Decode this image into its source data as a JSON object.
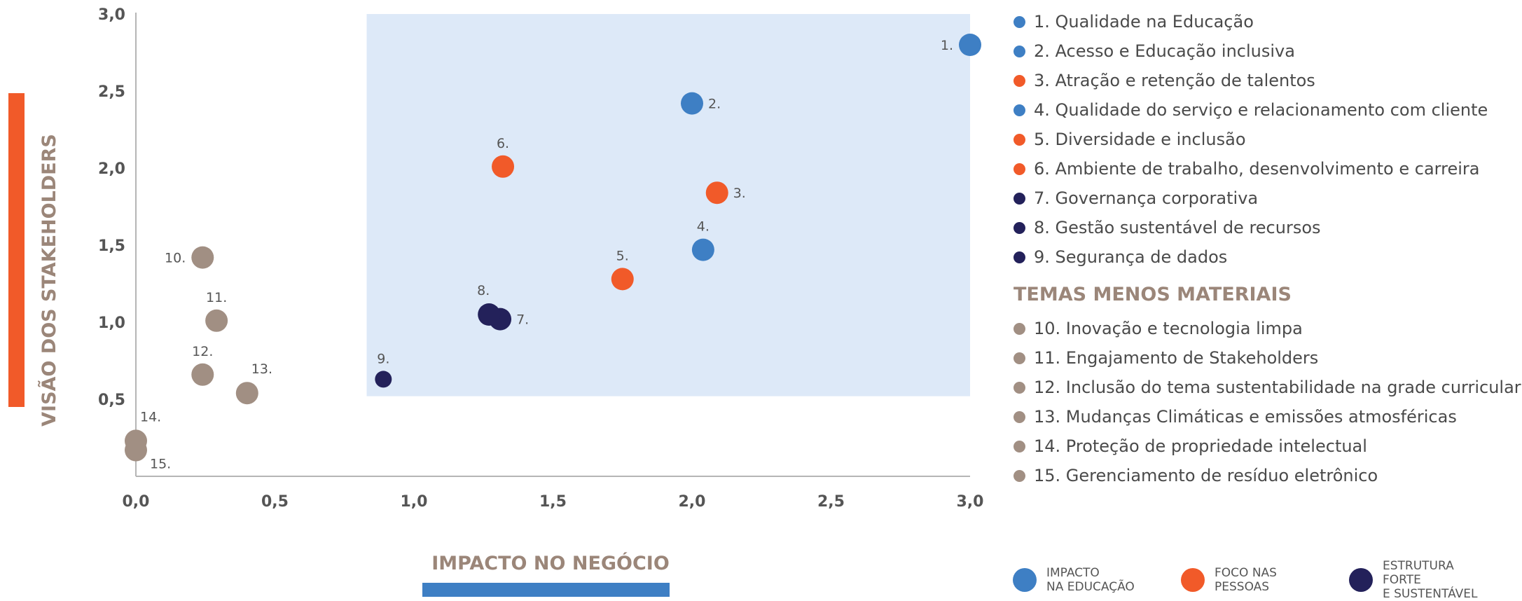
{
  "colors": {
    "education": "#3e7fc4",
    "people": "#f15a29",
    "structure": "#23215a",
    "less": "#a18f83",
    "highlight": "#dde9f8",
    "axis": "#b5b5b5",
    "title": "#9b8679",
    "accent_orange": "#f15a29",
    "accent_blue": "#3e7fc4"
  },
  "chart_data": {
    "type": "scatter",
    "title": "",
    "xlabel": "IMPACTO NO NEGÓCIO",
    "ylabel": "VISÃO DOS STAKEHOLDERS",
    "xlim": [
      0,
      3
    ],
    "ylim": [
      0,
      3
    ],
    "x_ticks": [
      "0,0",
      "0,5",
      "1,0",
      "1,5",
      "2,0",
      "2,5",
      "3,0"
    ],
    "y_ticks": [
      "0,5",
      "1,0",
      "1,5",
      "2,0",
      "2,5",
      "3,0"
    ],
    "highlight_region": {
      "x": [
        0.83,
        3.0
      ],
      "y": [
        0.52,
        3.0
      ]
    },
    "points": [
      {
        "label": "1.",
        "x": 3.0,
        "y": 2.8,
        "group": "education",
        "label_pos": "left"
      },
      {
        "label": "2.",
        "x": 2.0,
        "y": 2.42,
        "group": "education",
        "label_pos": "right"
      },
      {
        "label": "3.",
        "x": 2.09,
        "y": 1.84,
        "group": "people",
        "label_pos": "right"
      },
      {
        "label": "4.",
        "x": 2.04,
        "y": 1.47,
        "group": "education",
        "label_pos": "above"
      },
      {
        "label": "5.",
        "x": 1.75,
        "y": 1.28,
        "group": "people",
        "label_pos": "above"
      },
      {
        "label": "6.",
        "x": 1.32,
        "y": 2.01,
        "group": "people",
        "label_pos": "above"
      },
      {
        "label": "7.",
        "x": 1.31,
        "y": 1.02,
        "group": "structure",
        "label_pos": "right"
      },
      {
        "label": "8.",
        "x": 1.27,
        "y": 1.05,
        "group": "structure",
        "label_pos": "above-left"
      },
      {
        "label": "9.",
        "x": 0.89,
        "y": 0.63,
        "group": "structure",
        "label_pos": "above"
      },
      {
        "label": "10.",
        "x": 0.24,
        "y": 1.42,
        "group": "less",
        "label_pos": "left"
      },
      {
        "label": "11.",
        "x": 0.29,
        "y": 1.01,
        "group": "less",
        "label_pos": "above"
      },
      {
        "label": "12.",
        "x": 0.24,
        "y": 0.66,
        "group": "less",
        "label_pos": "above"
      },
      {
        "label": "13.",
        "x": 0.4,
        "y": 0.54,
        "group": "less",
        "label_pos": "above-right"
      },
      {
        "label": "14.",
        "x": 0.0,
        "y": 0.23,
        "group": "less",
        "label_pos": "above-right"
      },
      {
        "label": "15.",
        "x": 0.0,
        "y": 0.17,
        "group": "less",
        "label_pos": "below-right"
      }
    ]
  },
  "legend": {
    "material": [
      {
        "text": "1. Qualidade na Educação",
        "group": "education"
      },
      {
        "text": "2. Acesso e Educação inclusiva",
        "group": "education"
      },
      {
        "text": "3. Atração e retenção de talentos",
        "group": "people"
      },
      {
        "text": "4. Qualidade do serviço e relacionamento com cliente",
        "group": "education"
      },
      {
        "text": "5. Diversidade e inclusão",
        "group": "people"
      },
      {
        "text": "6. Ambiente de trabalho, desenvolvimento e carreira",
        "group": "people"
      },
      {
        "text": "7. Governança corporativa",
        "group": "structure"
      },
      {
        "text": "8. Gestão sustentável de recursos",
        "group": "structure"
      },
      {
        "text": "9. Segurança de dados",
        "group": "structure"
      }
    ],
    "less_title": "TEMAS MENOS MATERIAIS",
    "less": [
      {
        "text": "10. Inovação e tecnologia limpa",
        "group": "less"
      },
      {
        "text": "11. Engajamento de Stakeholders",
        "group": "less"
      },
      {
        "text": "12. Inclusão do tema sustentabilidade na grade curricular",
        "group": "less"
      },
      {
        "text": "13. Mudanças Climáticas e emissões atmosféricas",
        "group": "less"
      },
      {
        "text": "14. Proteção de propriedade intelectual",
        "group": "less"
      },
      {
        "text": "15. Gerenciamento de resíduo eletrônico",
        "group": "less"
      }
    ]
  },
  "bottom_legend": [
    {
      "line1": "IMPACTO",
      "line2": "NA EDUCAÇÃO",
      "group": "education"
    },
    {
      "line1": "FOCO NAS",
      "line2": "PESSOAS",
      "group": "people"
    },
    {
      "line1": "ESTRUTURA FORTE",
      "line2": "E SUSTENTÁVEL",
      "group": "structure"
    }
  ]
}
